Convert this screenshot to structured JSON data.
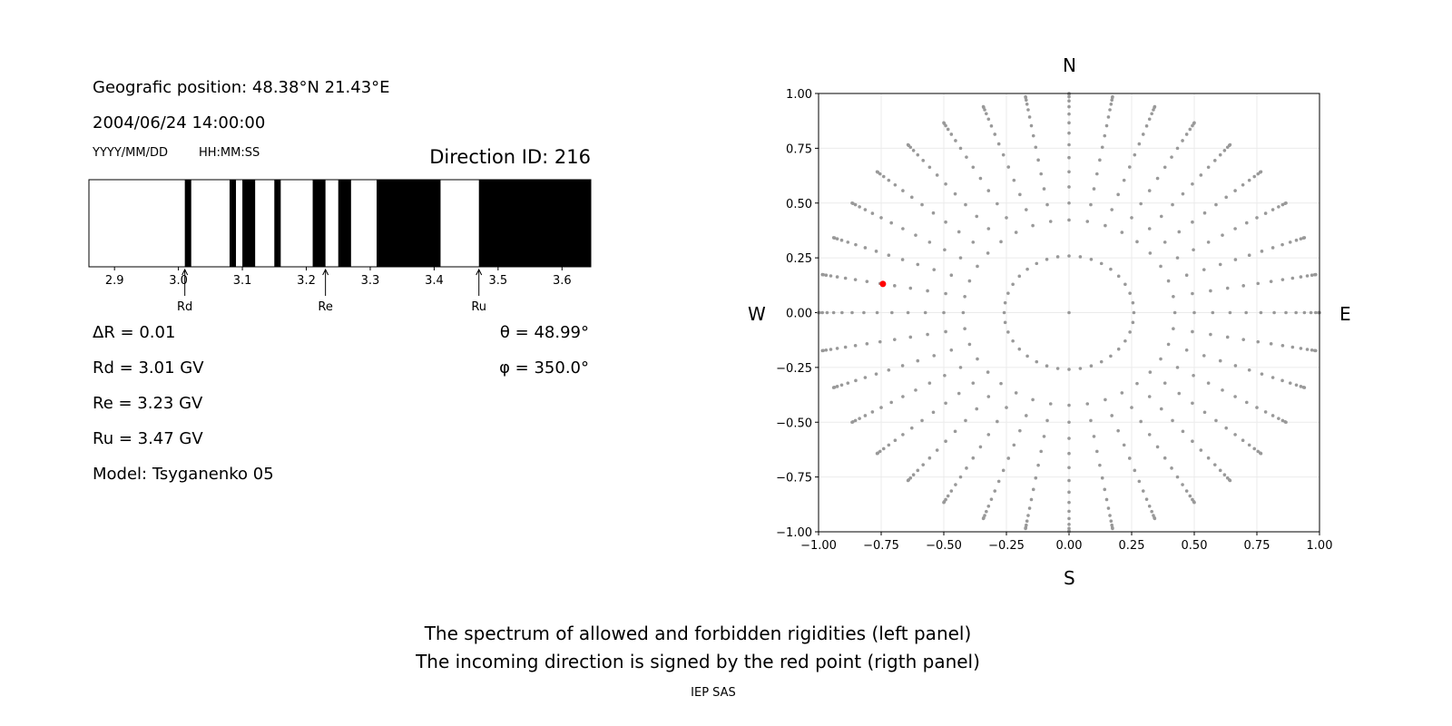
{
  "left_panel": {
    "position": "Geografic position: 48.38°N 21.43°E",
    "datetime": "2004/06/24 14:00:00",
    "date_format": "YYYY/MM/DD",
    "time_format": "HH:MM:SS",
    "direction_id": "Direction ID: 216",
    "delta_r": "ΔR = 0.01",
    "rd": "Rd = 3.01 GV",
    "re": "Re = 3.23 GV",
    "ru": "Ru = 3.47 GV",
    "model": "Model: Tsyganenko 05",
    "theta": "θ = 48.99°",
    "phi": "φ = 350.0°"
  },
  "right_panel": {
    "north": "N",
    "south": "S",
    "west": "W",
    "east": "E"
  },
  "caption": {
    "line1": "The spectrum of allowed and forbidden rigidities (left panel)",
    "line2": "The incoming direction is signed by the red point (rigth panel)",
    "credit": "IEP SAS"
  },
  "chart_data": [
    {
      "type": "bar",
      "description_kind": "rigidity spectrum",
      "xlim": [
        2.86,
        3.645
      ],
      "ticks": [
        "2.9",
        "3.0",
        "3.1",
        "3.2",
        "3.3",
        "3.4",
        "3.5",
        "3.6"
      ],
      "forbidden_intervals": [
        [
          3.01,
          3.02
        ],
        [
          3.08,
          3.09
        ],
        [
          3.1,
          3.12
        ],
        [
          3.15,
          3.16
        ],
        [
          3.21,
          3.23
        ],
        [
          3.25,
          3.27
        ],
        [
          3.31,
          3.41
        ],
        [
          3.47,
          3.645
        ]
      ],
      "allowed_color": "#ffffff",
      "forbidden_color": "#000000",
      "markers": [
        {
          "label": "Rd",
          "x": 3.01
        },
        {
          "label": "Re",
          "x": 3.23
        },
        {
          "label": "Ru",
          "x": 3.47
        }
      ]
    },
    {
      "type": "scatter",
      "xlim": [
        -1,
        1
      ],
      "ylim": [
        -1,
        1
      ],
      "ticks": [
        "−1.00",
        "−0.75",
        "−0.50",
        "−0.25",
        "0.00",
        "0.25",
        "0.50",
        "0.75",
        "1.00"
      ],
      "grid": true,
      "grid_zenith_deg": [
        0,
        15,
        25,
        30,
        35,
        40,
        45,
        50,
        55,
        60,
        65,
        70,
        75,
        80,
        85,
        90
      ],
      "grid_azimuth_step_deg": 10,
      "point_color": "#999999",
      "highlight": {
        "theta_deg": 48.99,
        "phi_deg": 350.0,
        "color": "#ff0000"
      }
    }
  ]
}
